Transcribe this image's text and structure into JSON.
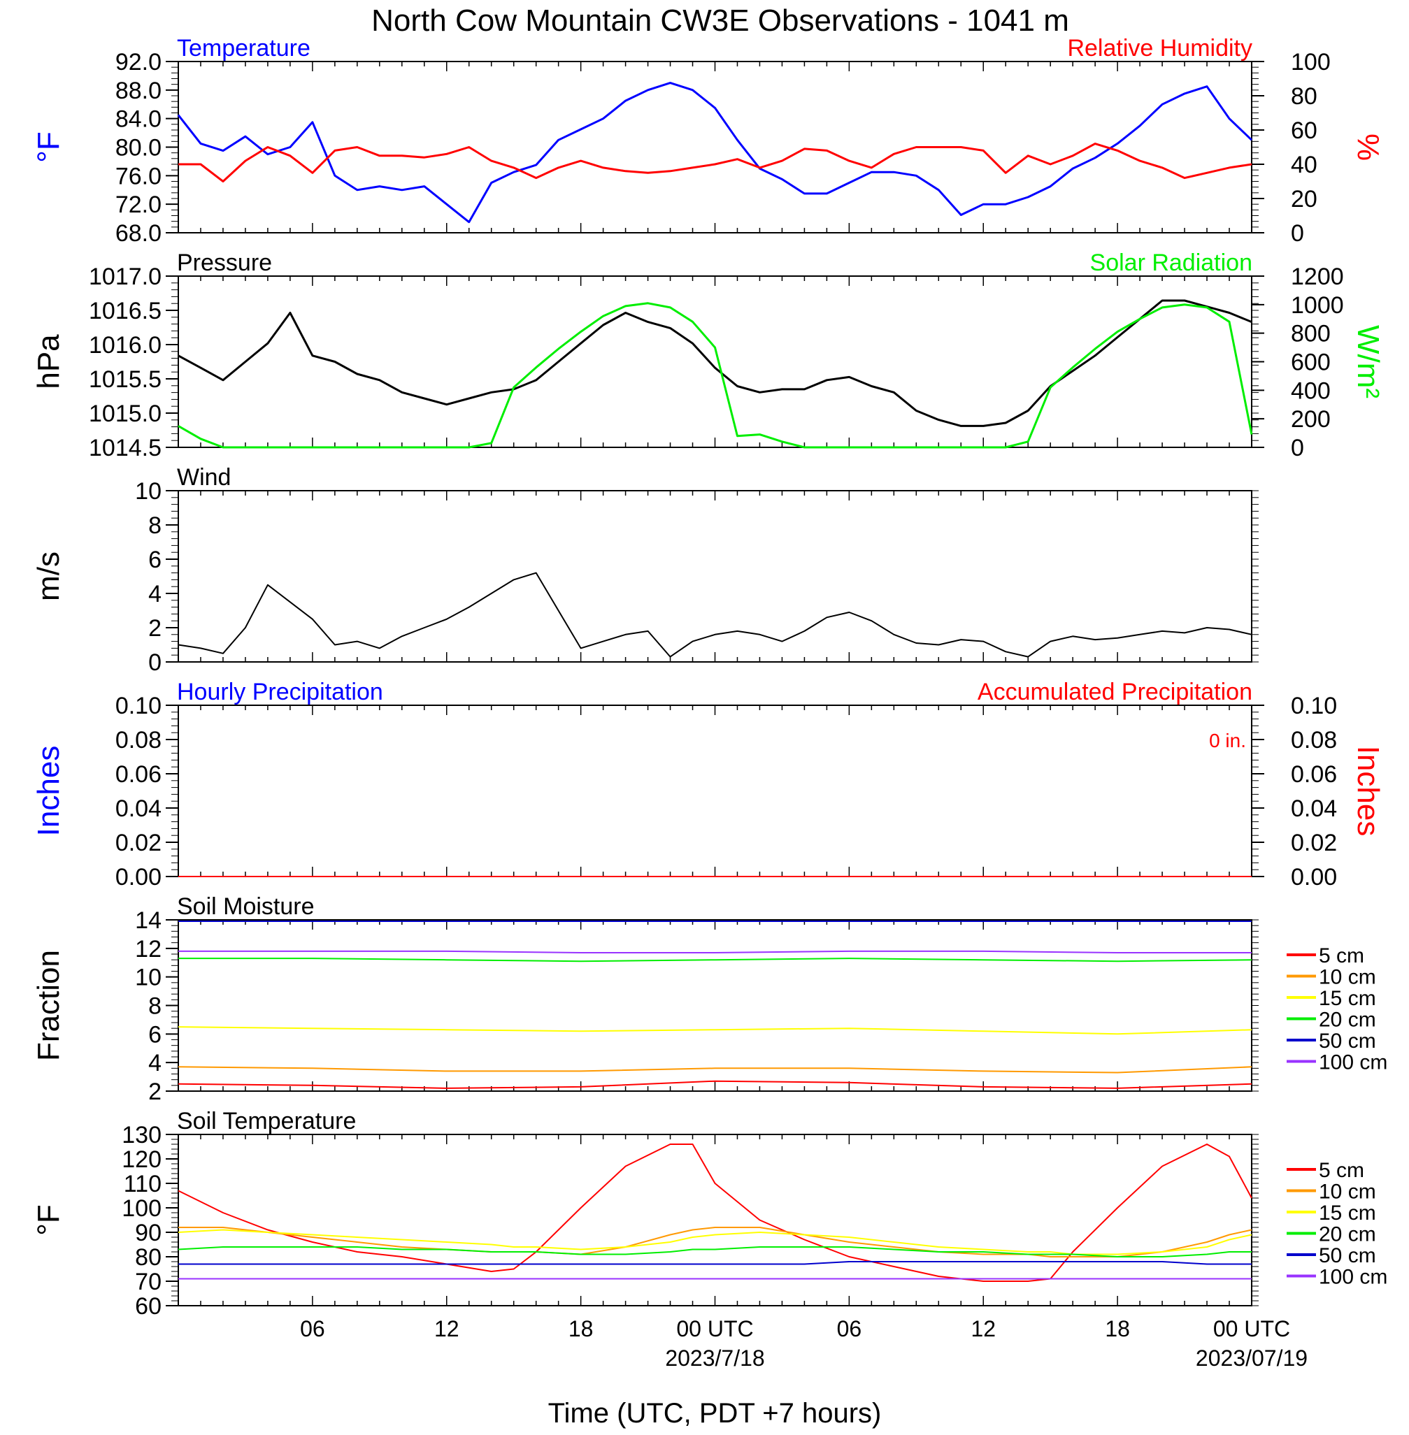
{
  "title": "North Cow Mountain CW3E Observations - 1041 m",
  "x_axis": {
    "title": "Time (UTC, PDT +7 hours)",
    "tick_labels": [
      "06",
      "12",
      "18",
      "00 UTC",
      "06",
      "12",
      "18",
      "00 UTC"
    ],
    "date_labels": [
      "2023/7/18",
      "2023/07/19"
    ]
  },
  "colors": {
    "blue": "#0000ff",
    "red": "#ff0000",
    "green": "#00ee00",
    "black": "#000000",
    "orange": "#ff9900",
    "yellow": "#ffff00",
    "navy": "#0000cc",
    "purple": "#9933ff"
  },
  "chart_data": [
    {
      "type": "line",
      "panel": "temperature-rh",
      "title_left": "Temperature",
      "title_right": "Relative Humidity",
      "ylabel_left": "°F",
      "ylabel_right": "%",
      "ylim_left": [
        68,
        92
      ],
      "yticks_left": [
        "92.0",
        "88.0",
        "84.0",
        "80.0",
        "76.0",
        "72.0",
        "68.0"
      ],
      "ylim_right": [
        0,
        100
      ],
      "yticks_right": [
        "100",
        "80",
        "60",
        "40",
        "20",
        "0"
      ],
      "x_hours": [
        0,
        1,
        2,
        3,
        4,
        5,
        6,
        7,
        8,
        9,
        10,
        11,
        12,
        13,
        14,
        15,
        16,
        17,
        18,
        19,
        20,
        21,
        22,
        23,
        24,
        25,
        26,
        27,
        28,
        29,
        30,
        31,
        32,
        33,
        34,
        35,
        36,
        37,
        38,
        39,
        40,
        41,
        42,
        43,
        44,
        45,
        46,
        47,
        48
      ],
      "series": [
        {
          "name": "Temperature",
          "axis": "left",
          "color": "#0000ff",
          "values": [
            84.5,
            80.5,
            79.5,
            81.5,
            79,
            80,
            83.5,
            76,
            74,
            74.5,
            74,
            74.5,
            72,
            69.5,
            75,
            76.5,
            77.5,
            81,
            82.5,
            84,
            86.5,
            88,
            89,
            88,
            85.5,
            81,
            77,
            75.5,
            73.5,
            73.5,
            75,
            76.5,
            76.5,
            76,
            74,
            70.5,
            72,
            72,
            73,
            74.5,
            77,
            78.5,
            80.5,
            83,
            86,
            87.5,
            88.5,
            84,
            81
          ]
        },
        {
          "name": "Relative Humidity",
          "axis": "right",
          "color": "#ff0000",
          "values": [
            40,
            40,
            30,
            42,
            50,
            45,
            35,
            48,
            50,
            45,
            45,
            44,
            46,
            50,
            42,
            38,
            32,
            38,
            42,
            38,
            36,
            35,
            36,
            38,
            40,
            43,
            38,
            42,
            49,
            48,
            42,
            38,
            46,
            50,
            50,
            50,
            48,
            35,
            45,
            40,
            45,
            52,
            48,
            42,
            38,
            32,
            35,
            38,
            40
          ]
        }
      ]
    },
    {
      "type": "line",
      "panel": "pressure-solar",
      "title_left": "Pressure",
      "title_right": "Solar Radiation",
      "ylabel_left": "hPa",
      "ylabel_right": "W/m²",
      "ylim_left": [
        1014.4,
        1017.2
      ],
      "yticks_left": [
        "1017.0",
        "1016.5",
        "1016.0",
        "1015.5",
        "1015.0",
        "1014.5"
      ],
      "ylim_right": [
        0,
        1200
      ],
      "yticks_right": [
        "1200",
        "1000",
        "800",
        "600",
        "400",
        "200",
        "0"
      ],
      "x_hours": [
        0,
        1,
        2,
        3,
        4,
        5,
        6,
        7,
        8,
        9,
        10,
        11,
        12,
        13,
        14,
        15,
        16,
        17,
        18,
        19,
        20,
        21,
        22,
        23,
        24,
        25,
        26,
        27,
        28,
        29,
        30,
        31,
        32,
        33,
        34,
        35,
        36,
        37,
        38,
        39,
        40,
        41,
        42,
        43,
        44,
        45,
        46,
        47,
        48
      ],
      "series": [
        {
          "name": "Pressure",
          "axis": "left",
          "color": "#000000",
          "values": [
            1015.9,
            1015.7,
            1015.5,
            1015.8,
            1016.1,
            1016.6,
            1015.9,
            1015.8,
            1015.6,
            1015.5,
            1015.3,
            1015.2,
            1015.1,
            1015.2,
            1015.3,
            1015.35,
            1015.5,
            1015.8,
            1016.1,
            1016.4,
            1016.6,
            1016.45,
            1016.35,
            1016.1,
            1015.7,
            1015.4,
            1015.3,
            1015.35,
            1015.35,
            1015.5,
            1015.55,
            1015.4,
            1015.3,
            1015.0,
            1014.85,
            1014.75,
            1014.75,
            1014.8,
            1015.0,
            1015.4,
            1015.65,
            1015.9,
            1016.2,
            1016.5,
            1016.8,
            1016.8,
            1016.7,
            1016.6,
            1016.45
          ]
        },
        {
          "name": "Solar Radiation",
          "axis": "right",
          "color": "#00ee00",
          "values": [
            150,
            60,
            0,
            0,
            0,
            0,
            0,
            0,
            0,
            0,
            0,
            0,
            0,
            0,
            30,
            420,
            560,
            690,
            810,
            920,
            990,
            1010,
            980,
            880,
            700,
            80,
            90,
            40,
            0,
            0,
            0,
            0,
            0,
            0,
            0,
            0,
            0,
            0,
            40,
            420,
            560,
            690,
            810,
            900,
            980,
            1000,
            980,
            880,
            90
          ]
        }
      ]
    },
    {
      "type": "line",
      "panel": "wind",
      "title_left": "Wind",
      "ylabel_left": "m/s",
      "ylim_left": [
        0,
        10
      ],
      "yticks_left": [
        "10",
        "8",
        "6",
        "4",
        "2",
        "0"
      ],
      "x_hours": [
        0,
        1,
        2,
        3,
        4,
        5,
        6,
        7,
        8,
        9,
        10,
        11,
        12,
        13,
        14,
        15,
        16,
        17,
        18,
        19,
        20,
        21,
        22,
        23,
        24,
        25,
        26,
        27,
        28,
        29,
        30,
        31,
        32,
        33,
        34,
        35,
        36,
        37,
        38,
        39,
        40,
        41,
        42,
        43,
        44,
        45,
        46,
        47,
        48
      ],
      "series": [
        {
          "name": "Wind speed",
          "color": "#000000",
          "values": [
            1.0,
            0.8,
            0.5,
            2.0,
            4.5,
            3.5,
            2.5,
            1.0,
            1.2,
            0.8,
            1.5,
            2.0,
            2.5,
            3.2,
            4.0,
            4.8,
            5.2,
            3.0,
            0.8,
            1.2,
            1.6,
            1.8,
            0.3,
            1.2,
            1.6,
            1.8,
            1.6,
            1.2,
            1.8,
            2.6,
            2.9,
            2.4,
            1.6,
            1.1,
            1.0,
            1.3,
            1.2,
            0.6,
            0.3,
            1.2,
            1.5,
            1.3,
            1.4,
            1.6,
            1.8,
            1.7,
            2.0,
            1.9,
            1.6
          ]
        }
      ]
    },
    {
      "type": "line",
      "panel": "precipitation",
      "title_left": "Hourly Precipitation",
      "title_right": "Accumulated Precipitation",
      "annotation": "0 in.",
      "ylabel_left": "Inches",
      "ylabel_right": "Inches",
      "ylim_left": [
        0,
        0.1
      ],
      "yticks_left": [
        "0.10",
        "0.08",
        "0.06",
        "0.04",
        "0.02",
        "0.00"
      ],
      "ylim_right": [
        0,
        0.1
      ],
      "yticks_right": [
        "0.10",
        "0.08",
        "0.06",
        "0.04",
        "0.02",
        "0.00"
      ],
      "x_hours": [
        0,
        48
      ],
      "series": [
        {
          "name": "Hourly Precipitation",
          "color": "#0000ff",
          "values": [
            0,
            0
          ]
        },
        {
          "name": "Accumulated Precipitation",
          "color": "#ff0000",
          "values": [
            0,
            0
          ]
        }
      ]
    },
    {
      "type": "line",
      "panel": "soil-moisture",
      "title_left": "Soil Moisture",
      "ylabel_left": "Fraction",
      "ylim_left": [
        2,
        14
      ],
      "yticks_left": [
        "14",
        "12",
        "10",
        "8",
        "6",
        "4",
        "2"
      ],
      "legend": "right",
      "x_hours": [
        0,
        6,
        12,
        18,
        24,
        30,
        36,
        42,
        48
      ],
      "series": [
        {
          "name": "5 cm",
          "color": "#ff0000",
          "values": [
            2.5,
            2.4,
            2.2,
            2.3,
            2.7,
            2.6,
            2.3,
            2.2,
            2.5
          ]
        },
        {
          "name": "10 cm",
          "color": "#ff9900",
          "values": [
            3.7,
            3.6,
            3.4,
            3.4,
            3.6,
            3.6,
            3.4,
            3.3,
            3.7
          ]
        },
        {
          "name": "15 cm",
          "color": "#ffff00",
          "values": [
            6.5,
            6.4,
            6.3,
            6.2,
            6.3,
            6.4,
            6.2,
            6.0,
            6.3
          ]
        },
        {
          "name": "20 cm",
          "color": "#00ee00",
          "values": [
            11.3,
            11.3,
            11.2,
            11.1,
            11.2,
            11.3,
            11.2,
            11.1,
            11.2
          ]
        },
        {
          "name": "50 cm",
          "color": "#0000cc",
          "values": [
            13.9,
            13.9,
            13.9,
            13.9,
            13.9,
            13.9,
            13.9,
            13.9,
            13.9
          ]
        },
        {
          "name": "100 cm",
          "color": "#9933ff",
          "values": [
            11.8,
            11.8,
            11.8,
            11.7,
            11.7,
            11.8,
            11.8,
            11.7,
            11.7
          ]
        }
      ]
    },
    {
      "type": "line",
      "panel": "soil-temperature",
      "title_left": "Soil Temperature",
      "ylabel_left": "°F",
      "ylim_left": [
        60,
        130
      ],
      "yticks_left": [
        "130",
        "120",
        "110",
        "100",
        "90",
        "80",
        "70",
        "60"
      ],
      "legend": "right",
      "x_hours": [
        0,
        2,
        4,
        6,
        8,
        10,
        12,
        14,
        15,
        16,
        18,
        20,
        22,
        23,
        24,
        26,
        28,
        30,
        32,
        34,
        36,
        38,
        39,
        40,
        42,
        44,
        46,
        47,
        48
      ],
      "series": [
        {
          "name": "5 cm",
          "color": "#ff0000",
          "values": [
            107,
            98,
            91,
            86,
            82,
            80,
            77,
            74,
            75,
            82,
            100,
            117,
            126,
            126,
            110,
            95,
            87,
            80,
            76,
            72,
            70,
            70,
            71,
            82,
            100,
            117,
            126,
            121,
            104
          ]
        },
        {
          "name": "10 cm",
          "color": "#ff9900",
          "values": [
            92,
            92,
            90,
            88,
            86,
            84,
            83,
            82,
            82,
            82,
            81,
            84,
            89,
            91,
            92,
            92,
            89,
            86,
            84,
            82,
            81,
            81,
            80,
            80,
            80,
            82,
            86,
            89,
            91
          ]
        },
        {
          "name": "15 cm",
          "color": "#ffff00",
          "values": [
            90,
            91,
            90,
            89,
            88,
            87,
            86,
            85,
            84,
            84,
            83,
            84,
            86,
            88,
            89,
            90,
            89,
            88,
            86,
            84,
            83,
            82,
            82,
            81,
            81,
            82,
            84,
            87,
            89
          ]
        },
        {
          "name": "20 cm",
          "color": "#00ee00",
          "values": [
            83,
            84,
            84,
            84,
            84,
            83,
            83,
            82,
            82,
            82,
            81,
            81,
            82,
            83,
            83,
            84,
            84,
            84,
            83,
            82,
            82,
            81,
            81,
            81,
            80,
            80,
            81,
            82,
            82
          ]
        },
        {
          "name": "50 cm",
          "color": "#0000cc",
          "values": [
            77,
            77,
            77,
            77,
            77,
            77,
            77,
            77,
            77,
            77,
            77,
            77,
            77,
            77,
            77,
            77,
            77,
            78,
            78,
            78,
            78,
            78,
            78,
            78,
            78,
            78,
            77,
            77,
            77
          ]
        },
        {
          "name": "100 cm",
          "color": "#9933ff",
          "values": [
            71,
            71,
            71,
            71,
            71,
            71,
            71,
            71,
            71,
            71,
            71,
            71,
            71,
            71,
            71,
            71,
            71,
            71,
            71,
            71,
            71,
            71,
            71,
            71,
            71,
            71,
            71,
            71,
            71
          ]
        }
      ]
    }
  ]
}
